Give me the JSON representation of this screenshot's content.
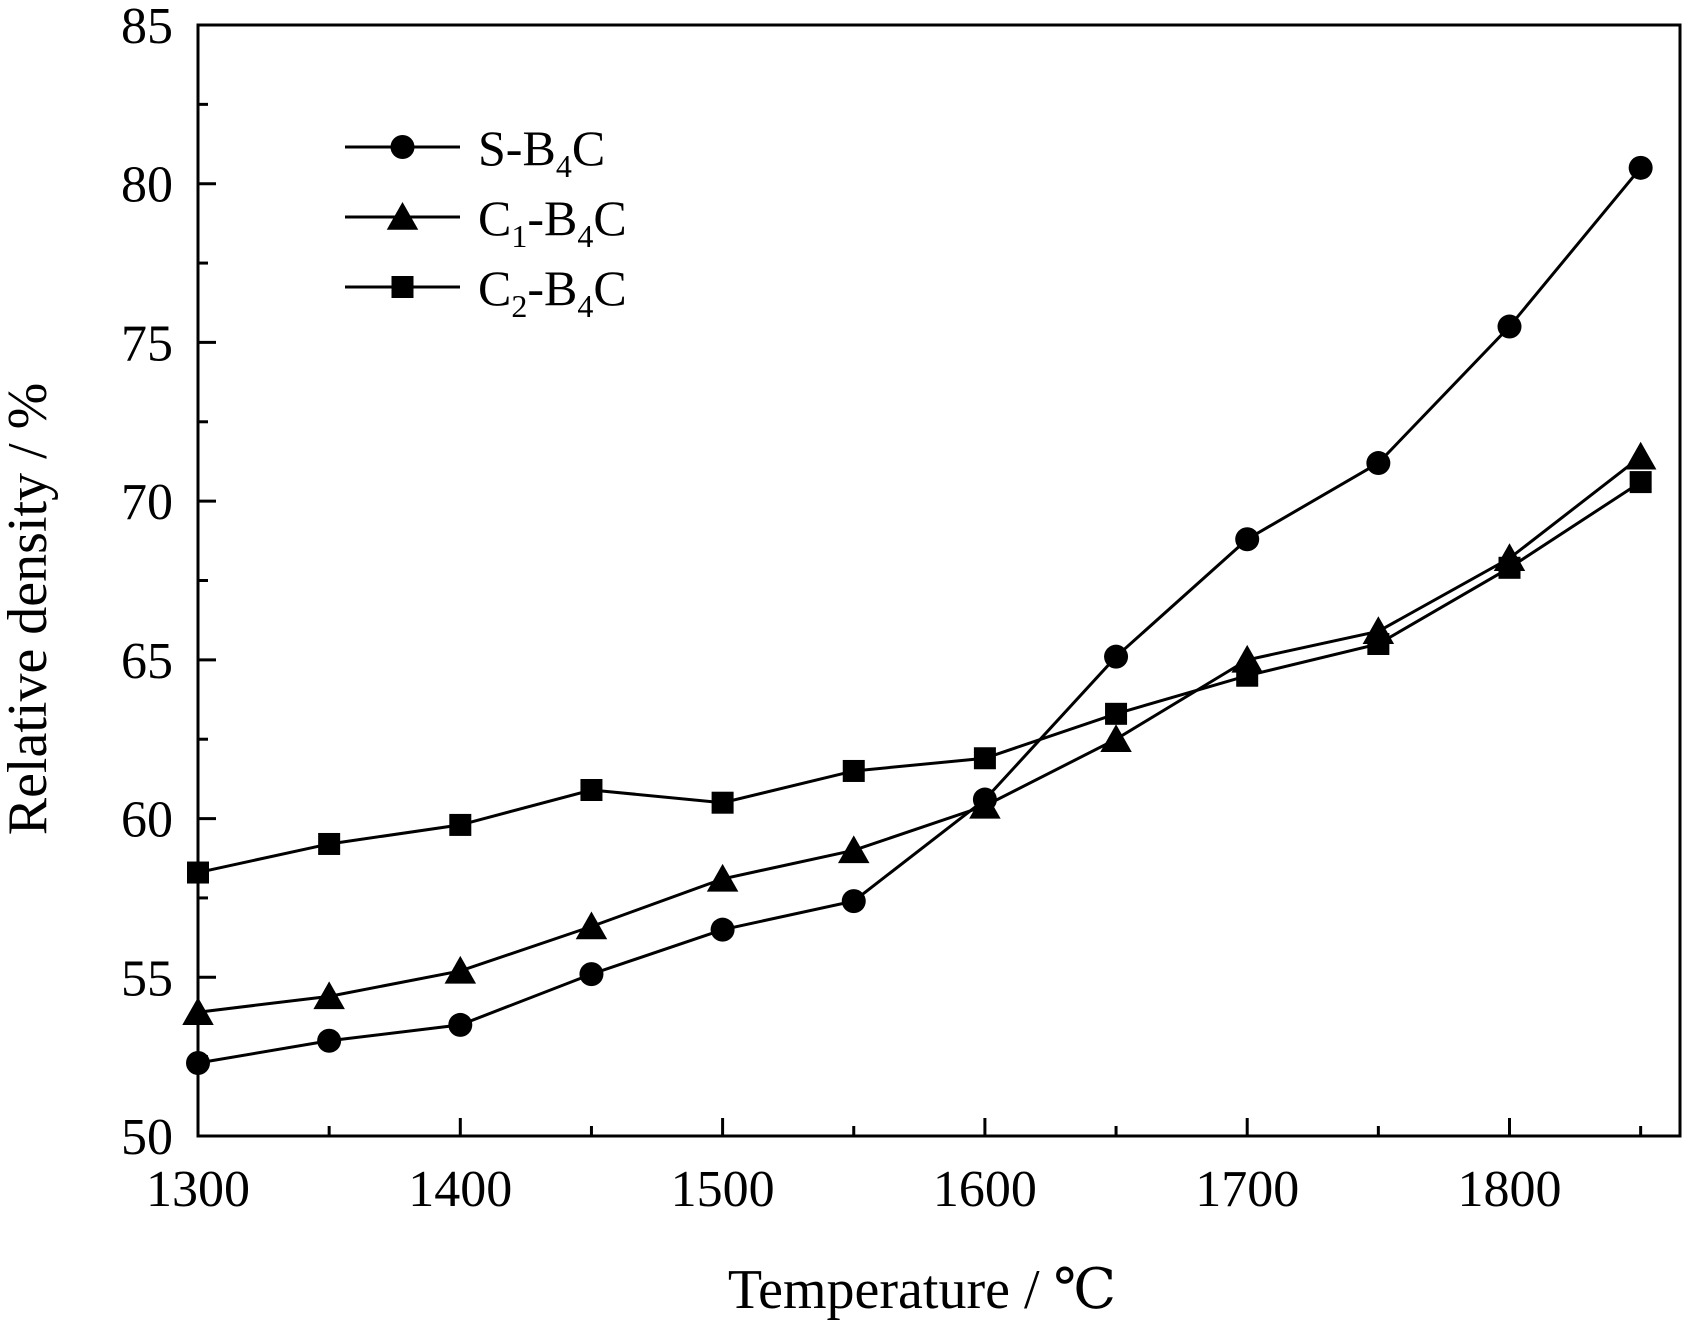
{
  "chart_data": {
    "type": "line",
    "xlabel": "Temperature / ℃",
    "ylabel": "Relative density / %",
    "xlim": [
      1300,
      1865
    ],
    "ylim": [
      50,
      85
    ],
    "x_ticks": [
      1300,
      1400,
      1500,
      1600,
      1700,
      1800
    ],
    "x_tick_labels": [
      "1300",
      "1400",
      "1500",
      "1600",
      "1700",
      "1800"
    ],
    "y_ticks": [
      50,
      55,
      60,
      65,
      70,
      75,
      80,
      85
    ],
    "y_tick_labels": [
      "50",
      "55",
      "60",
      "65",
      "70",
      "75",
      "80",
      "85"
    ],
    "grid": false,
    "legend_position": "top-left",
    "x": [
      1300,
      1350,
      1400,
      1450,
      1500,
      1550,
      1600,
      1650,
      1700,
      1750,
      1800,
      1850
    ],
    "series": [
      {
        "name": "S-B4C",
        "name_base": "S-B",
        "name_sub": "4",
        "name_tail": "C",
        "marker": "circle",
        "color": "#000000",
        "values": [
          52.3,
          53.0,
          53.5,
          55.1,
          56.5,
          57.4,
          60.6,
          65.1,
          68.8,
          71.2,
          75.5,
          80.5
        ]
      },
      {
        "name": "C1-B4C",
        "name_base": "C",
        "name_sub": "1",
        "name_mid": "-B",
        "name_sub2": "4",
        "name_tail": "C",
        "marker": "triangle",
        "color": "#000000",
        "values": [
          53.9,
          54.4,
          55.2,
          56.6,
          58.1,
          59.0,
          60.4,
          62.5,
          65.0,
          65.9,
          68.2,
          71.4
        ]
      },
      {
        "name": "C2-B4C",
        "name_base": "C",
        "name_sub": "2",
        "name_mid": "-B",
        "name_sub2": "4",
        "name_tail": "C",
        "marker": "square",
        "color": "#000000",
        "values": [
          58.3,
          59.2,
          59.8,
          60.9,
          60.5,
          61.5,
          61.9,
          63.3,
          64.5,
          65.5,
          67.9,
          70.6
        ]
      }
    ]
  }
}
